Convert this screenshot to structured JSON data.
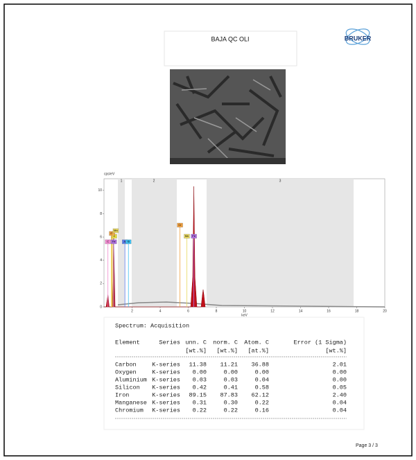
{
  "header": {
    "title": "BAJA QC OLI",
    "logo": "BRUKER"
  },
  "spectrum": {
    "y_label": "cps/eV",
    "x_label": "keV",
    "region_labels": [
      "1",
      "2",
      "3"
    ],
    "xlim": [
      0,
      20
    ],
    "ylim": [
      0,
      11
    ],
    "xticks": [
      2,
      4,
      6,
      8,
      10,
      12,
      14,
      16,
      18,
      20
    ],
    "yticks": [
      0,
      2,
      4,
      6,
      8,
      10
    ],
    "element_markers": [
      {
        "label": "C",
        "energy": 0.28,
        "color": "#f08ad0"
      },
      {
        "label": "O",
        "energy": 0.52,
        "color": "#e8e040"
      },
      {
        "label": "Cr",
        "energy": 0.57,
        "color": "#f0a040"
      },
      {
        "label": "Mn",
        "energy": 0.64,
        "color": "#e8d860"
      },
      {
        "label": "Fe",
        "energy": 0.7,
        "color": "#b070e0"
      },
      {
        "label": "Al",
        "energy": 1.49,
        "color": "#6080f0"
      },
      {
        "label": "Si",
        "energy": 1.74,
        "color": "#40c0f0"
      },
      {
        "label": "Cr",
        "energy": 5.41,
        "color": "#f0a040"
      },
      {
        "label": "Mn",
        "energy": 5.9,
        "color": "#e8d860"
      },
      {
        "label": "Fe",
        "energy": 6.4,
        "color": "#b070e0"
      }
    ]
  },
  "table": {
    "title": "Spectrum: Acquisition",
    "columns": [
      "Element",
      "Series",
      "unn. C",
      "norm. C",
      "Atom. C",
      "Error (1 Sigma)"
    ],
    "units": [
      "[wt.%]",
      "[wt.%]",
      "[at.%]",
      "[wt.%]"
    ],
    "rows": [
      [
        "Carbon",
        "K-series",
        "11.38",
        "11.21",
        "36.88",
        "2.01"
      ],
      [
        "Oxygen",
        "K-series",
        "0.00",
        "0.00",
        "0.00",
        "0.00"
      ],
      [
        "Aluminium",
        "K-series",
        "0.03",
        "0.03",
        "0.04",
        "0.00"
      ],
      [
        "Silicon",
        "K-series",
        "0.42",
        "0.41",
        "0.58",
        "0.05"
      ],
      [
        "Iron",
        "K-series",
        "89.15",
        "87.83",
        "62.12",
        "2.40"
      ],
      [
        "Manganese",
        "K-series",
        "0.31",
        "0.30",
        "0.22",
        "0.04"
      ],
      [
        "Chromium",
        "K-series",
        "0.22",
        "0.22",
        "0.16",
        "0.04"
      ]
    ]
  },
  "footer": {
    "page": "Page 3 / 3"
  }
}
